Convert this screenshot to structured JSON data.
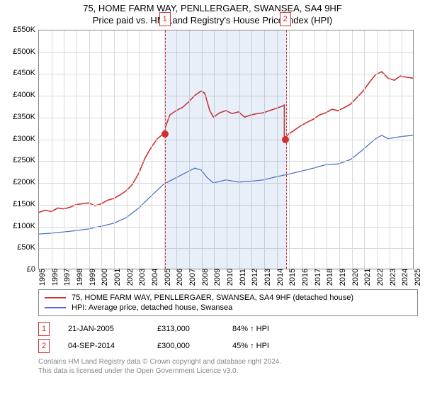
{
  "title": {
    "main": "75, HOME FARM WAY, PENLLERGAER, SWANSEA, SA4 9HF",
    "sub": "Price paid vs. HM Land Registry's House Price Index (HPI)"
  },
  "chart": {
    "type": "line",
    "background_color": "#ffffff",
    "grid_color": "#d9d9d9",
    "border_color": "#888888",
    "y": {
      "min": 0,
      "max": 550000,
      "step": 50000,
      "prefix": "£",
      "suffix": "K",
      "divide": 1000,
      "fontsize": 11
    },
    "x": {
      "min": 1995,
      "max": 2025,
      "step": 1,
      "fontsize": 11
    },
    "shade": {
      "start": 2005.06,
      "end": 2014.68,
      "color": "rgba(70,120,200,0.12)",
      "border_color": "#d03030"
    },
    "markers": [
      {
        "n": "1",
        "x": 2005.06,
        "y": 313000
      },
      {
        "n": "2",
        "x": 2014.68,
        "y": 300000
      }
    ],
    "series": [
      {
        "name": "property",
        "label": "75, HOME FARM WAY, PENLLERGAER, SWANSEA, SA4 9HF (detached house)",
        "color": "#d03030",
        "width": 1.6,
        "data": [
          [
            1995,
            130000
          ],
          [
            1995.5,
            135000
          ],
          [
            1996,
            132000
          ],
          [
            1996.5,
            140000
          ],
          [
            1997,
            138000
          ],
          [
            1997.5,
            142000
          ],
          [
            1998,
            148000
          ],
          [
            1998.5,
            150000
          ],
          [
            1999,
            152000
          ],
          [
            1999.5,
            145000
          ],
          [
            2000,
            150000
          ],
          [
            2000.5,
            158000
          ],
          [
            2001,
            162000
          ],
          [
            2001.5,
            170000
          ],
          [
            2002,
            180000
          ],
          [
            2002.5,
            195000
          ],
          [
            2003,
            220000
          ],
          [
            2003.5,
            255000
          ],
          [
            2004,
            280000
          ],
          [
            2004.5,
            300000
          ],
          [
            2005.06,
            313000
          ],
          [
            2005.06,
            320000
          ],
          [
            2005.5,
            355000
          ],
          [
            2006,
            365000
          ],
          [
            2006.5,
            372000
          ],
          [
            2007,
            385000
          ],
          [
            2007.5,
            400000
          ],
          [
            2008,
            410000
          ],
          [
            2008.3,
            405000
          ],
          [
            2008.7,
            365000
          ],
          [
            2009,
            350000
          ],
          [
            2009.5,
            360000
          ],
          [
            2010,
            365000
          ],
          [
            2010.5,
            358000
          ],
          [
            2011,
            362000
          ],
          [
            2011.5,
            350000
          ],
          [
            2012,
            355000
          ],
          [
            2012.5,
            358000
          ],
          [
            2013,
            360000
          ],
          [
            2013.5,
            365000
          ],
          [
            2014,
            370000
          ],
          [
            2014.5,
            375000
          ],
          [
            2014.68,
            378000
          ],
          [
            2014.68,
            300000
          ],
          [
            2015,
            310000
          ],
          [
            2015.5,
            320000
          ],
          [
            2016,
            330000
          ],
          [
            2016.5,
            338000
          ],
          [
            2017,
            345000
          ],
          [
            2017.5,
            355000
          ],
          [
            2018,
            360000
          ],
          [
            2018.5,
            368000
          ],
          [
            2019,
            365000
          ],
          [
            2019.5,
            372000
          ],
          [
            2020,
            380000
          ],
          [
            2020.5,
            395000
          ],
          [
            2021,
            410000
          ],
          [
            2021.5,
            430000
          ],
          [
            2022,
            448000
          ],
          [
            2022.5,
            455000
          ],
          [
            2023,
            440000
          ],
          [
            2023.5,
            435000
          ],
          [
            2024,
            445000
          ],
          [
            2024.5,
            442000
          ],
          [
            2025,
            440000
          ]
        ]
      },
      {
        "name": "hpi",
        "label": "HPI: Average price, detached house, Swansea",
        "color": "#4a72c8",
        "width": 1.3,
        "data": [
          [
            1995,
            80000
          ],
          [
            1996,
            82000
          ],
          [
            1997,
            85000
          ],
          [
            1998,
            88000
          ],
          [
            1999,
            92000
          ],
          [
            2000,
            98000
          ],
          [
            2001,
            105000
          ],
          [
            2002,
            118000
          ],
          [
            2003,
            140000
          ],
          [
            2004,
            168000
          ],
          [
            2005,
            195000
          ],
          [
            2006,
            210000
          ],
          [
            2007,
            225000
          ],
          [
            2007.5,
            232000
          ],
          [
            2008,
            228000
          ],
          [
            2008.5,
            210000
          ],
          [
            2009,
            198000
          ],
          [
            2010,
            205000
          ],
          [
            2011,
            200000
          ],
          [
            2012,
            202000
          ],
          [
            2013,
            205000
          ],
          [
            2014,
            212000
          ],
          [
            2015,
            218000
          ],
          [
            2016,
            225000
          ],
          [
            2017,
            232000
          ],
          [
            2018,
            240000
          ],
          [
            2019,
            242000
          ],
          [
            2020,
            252000
          ],
          [
            2021,
            275000
          ],
          [
            2022,
            300000
          ],
          [
            2022.5,
            308000
          ],
          [
            2023,
            300000
          ],
          [
            2024,
            305000
          ],
          [
            2025,
            308000
          ]
        ]
      }
    ]
  },
  "legend": {
    "border_color": "#888888",
    "items": [
      {
        "color": "#d03030",
        "label": "75, HOME FARM WAY, PENLLERGAER, SWANSEA, SA4 9HF (detached house)"
      },
      {
        "color": "#4a72c8",
        "label": "HPI: Average price, detached house, Swansea"
      }
    ]
  },
  "events": [
    {
      "n": "1",
      "date": "21-JAN-2005",
      "price": "£313,000",
      "pct": "84% ↑ HPI"
    },
    {
      "n": "2",
      "date": "04-SEP-2014",
      "price": "£300,000",
      "pct": "45% ↑ HPI"
    }
  ],
  "footer": {
    "line1": "Contains HM Land Registry data © Crown copyright and database right 2024.",
    "line2": "This data is licensed under the Open Government Licence v3.0."
  }
}
